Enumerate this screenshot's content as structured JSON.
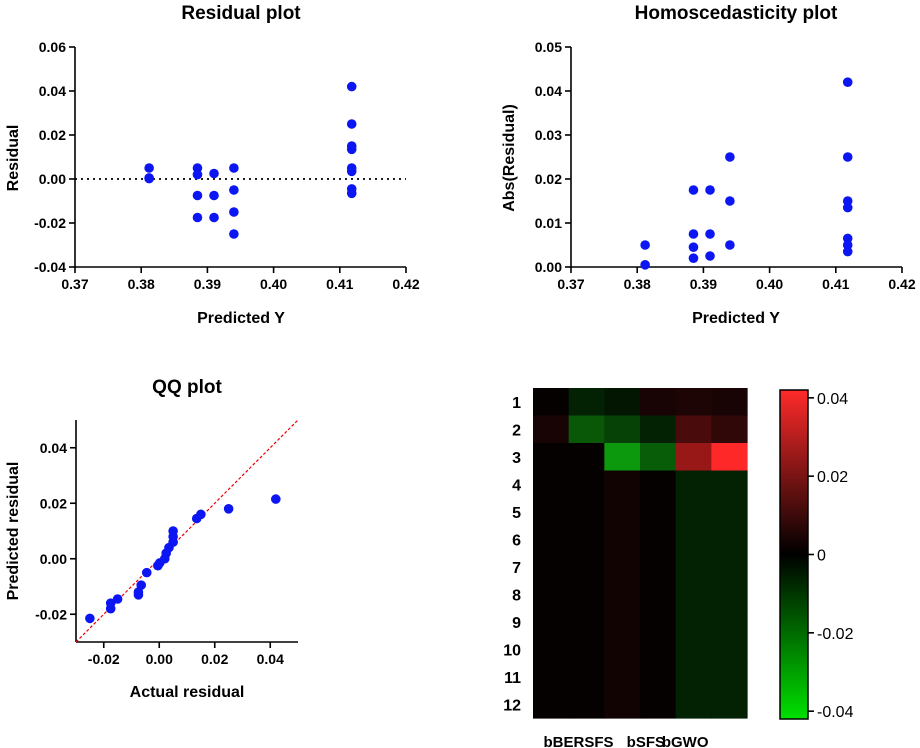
{
  "colors": {
    "points": "#0b16f2",
    "reference_line": "#ee0000",
    "cmap_neg": "#00ff00",
    "cmap_zero": "#000000",
    "cmap_pos": "#ff0000"
  },
  "chart_data": [
    {
      "id": "residual",
      "type": "scatter",
      "title": "Residual plot",
      "xlabel": "Predicted Y",
      "ylabel": "Residual",
      "xlim": [
        0.37,
        0.42
      ],
      "ylim": [
        -0.04,
        0.06
      ],
      "xticks": [
        0.37,
        0.38,
        0.39,
        0.4,
        0.41,
        0.42
      ],
      "xtick_labels": [
        "0.37",
        "0.38",
        "0.39",
        "0.40",
        "0.41",
        "0.42"
      ],
      "yticks": [
        -0.04,
        -0.02,
        0.0,
        0.02,
        0.04,
        0.06
      ],
      "ytick_labels": [
        "-0.04",
        "-0.02",
        "0.00",
        "0.02",
        "0.04",
        "0.06"
      ],
      "reference_line": {
        "y": 0,
        "style": "dotted"
      },
      "points": [
        [
          0.3812,
          0.005
        ],
        [
          0.3812,
          0.0005
        ],
        [
          0.3812,
          0.0002
        ],
        [
          0.3885,
          0.005
        ],
        [
          0.3885,
          0.002
        ],
        [
          0.3885,
          -0.0075
        ],
        [
          0.3885,
          -0.0175
        ],
        [
          0.391,
          0.0025
        ],
        [
          0.391,
          -0.0075
        ],
        [
          0.391,
          -0.0175
        ],
        [
          0.394,
          0.005
        ],
        [
          0.394,
          -0.005
        ],
        [
          0.394,
          -0.015
        ],
        [
          0.394,
          -0.025
        ],
        [
          0.4118,
          0.042
        ],
        [
          0.4118,
          0.025
        ],
        [
          0.4118,
          0.015
        ],
        [
          0.4118,
          0.0135
        ],
        [
          0.4118,
          0.005
        ],
        [
          0.4118,
          0.0035
        ],
        [
          0.4118,
          -0.0045
        ],
        [
          0.4118,
          -0.0065
        ]
      ]
    },
    {
      "id": "homoscedasticity",
      "type": "scatter",
      "title": "Homoscedasticity plot",
      "xlabel": "Predicted Y",
      "ylabel": "Abs(Residual)",
      "xlim": [
        0.37,
        0.42
      ],
      "ylim": [
        0.0,
        0.05
      ],
      "xticks": [
        0.37,
        0.38,
        0.39,
        0.4,
        0.41,
        0.42
      ],
      "xtick_labels": [
        "0.37",
        "0.38",
        "0.39",
        "0.40",
        "0.41",
        "0.42"
      ],
      "yticks": [
        0.0,
        0.01,
        0.02,
        0.03,
        0.04,
        0.05
      ],
      "ytick_labels": [
        "0.00",
        "0.01",
        "0.02",
        "0.03",
        "0.04",
        "0.05"
      ],
      "points": [
        [
          0.3812,
          0.005
        ],
        [
          0.3812,
          0.0005
        ],
        [
          0.3885,
          0.0175
        ],
        [
          0.3885,
          0.0075
        ],
        [
          0.3885,
          0.0045
        ],
        [
          0.3885,
          0.002
        ],
        [
          0.391,
          0.0175
        ],
        [
          0.391,
          0.0075
        ],
        [
          0.391,
          0.0025
        ],
        [
          0.394,
          0.025
        ],
        [
          0.394,
          0.015
        ],
        [
          0.394,
          0.005
        ],
        [
          0.4118,
          0.042
        ],
        [
          0.4118,
          0.025
        ],
        [
          0.4118,
          0.015
        ],
        [
          0.4118,
          0.0135
        ],
        [
          0.4118,
          0.0065
        ],
        [
          0.4118,
          0.005
        ],
        [
          0.4118,
          0.0035
        ]
      ]
    },
    {
      "id": "qq",
      "type": "scatter",
      "title": "QQ plot",
      "xlabel": "Actual residual",
      "ylabel": "Predicted residual",
      "xlim": [
        -0.03,
        0.05
      ],
      "ylim": [
        -0.03,
        0.05
      ],
      "xticks": [
        -0.02,
        0.0,
        0.02,
        0.04
      ],
      "xtick_labels": [
        "-0.02",
        "0.00",
        "0.02",
        "0.04"
      ],
      "yticks": [
        -0.02,
        0.0,
        0.02,
        0.04
      ],
      "ytick_labels": [
        "-0.02",
        "0.00",
        "0.02",
        "0.04"
      ],
      "reference_line": {
        "slope": 1,
        "intercept": 0,
        "style": "dashed"
      },
      "points": [
        [
          -0.025,
          -0.0215
        ],
        [
          -0.0175,
          -0.018
        ],
        [
          -0.0175,
          -0.016
        ],
        [
          -0.015,
          -0.0145
        ],
        [
          -0.0075,
          -0.013
        ],
        [
          -0.0075,
          -0.012
        ],
        [
          -0.0065,
          -0.0095
        ],
        [
          -0.0045,
          -0.005
        ],
        [
          -0.0005,
          -0.0025
        ],
        [
          0.0002,
          -0.0015
        ],
        [
          0.002,
          0.0
        ],
        [
          0.0025,
          0.002
        ],
        [
          0.0035,
          0.004
        ],
        [
          0.005,
          0.006
        ],
        [
          0.005,
          0.008
        ],
        [
          0.005,
          0.01
        ],
        [
          0.0135,
          0.0145
        ],
        [
          0.015,
          0.016
        ],
        [
          0.025,
          0.018
        ],
        [
          0.042,
          0.0215
        ]
      ]
    },
    {
      "id": "heatmap",
      "type": "heatmap",
      "rows": [
        "1",
        "2",
        "3",
        "4",
        "5",
        "6",
        "7",
        "8",
        "9",
        "10",
        "11",
        "12"
      ],
      "columns": [
        "",
        "bBERSFS",
        "",
        "bSFS",
        "",
        "bGWO"
      ],
      "column_labels_shown": [
        "bBERSFS",
        "bSFS",
        "bGWO"
      ],
      "color_range": [
        -0.042,
        0.042
      ],
      "colorbar_ticks": [
        0.04,
        0.02,
        0,
        -0.02,
        -0.04
      ],
      "colorbar_tick_labels": [
        "0.04",
        "0.02",
        "0",
        "-0.02",
        "-0.04"
      ],
      "values": [
        [
          0.001,
          -0.006,
          -0.004,
          0.004,
          0.005,
          0.004
        ],
        [
          0.004,
          -0.016,
          -0.012,
          -0.006,
          0.012,
          0.008
        ],
        [
          0.001,
          0.001,
          -0.028,
          -0.017,
          0.025,
          0.042
        ],
        [
          0.001,
          0.001,
          0.003,
          0.001,
          -0.006,
          -0.006
        ],
        [
          0.001,
          0.001,
          0.003,
          0.001,
          -0.006,
          -0.006
        ],
        [
          0.001,
          0.001,
          0.003,
          0.001,
          -0.006,
          -0.006
        ],
        [
          0.001,
          0.001,
          0.003,
          0.001,
          -0.006,
          -0.006
        ],
        [
          0.001,
          0.001,
          0.003,
          0.001,
          -0.006,
          -0.006
        ],
        [
          0.001,
          0.001,
          0.003,
          0.001,
          -0.006,
          -0.006
        ],
        [
          0.001,
          0.001,
          0.003,
          0.001,
          -0.006,
          -0.006
        ],
        [
          0.001,
          0.001,
          0.003,
          0.001,
          -0.006,
          -0.006
        ],
        [
          0.001,
          0.001,
          0.003,
          0.001,
          -0.006,
          -0.006
        ]
      ]
    }
  ]
}
